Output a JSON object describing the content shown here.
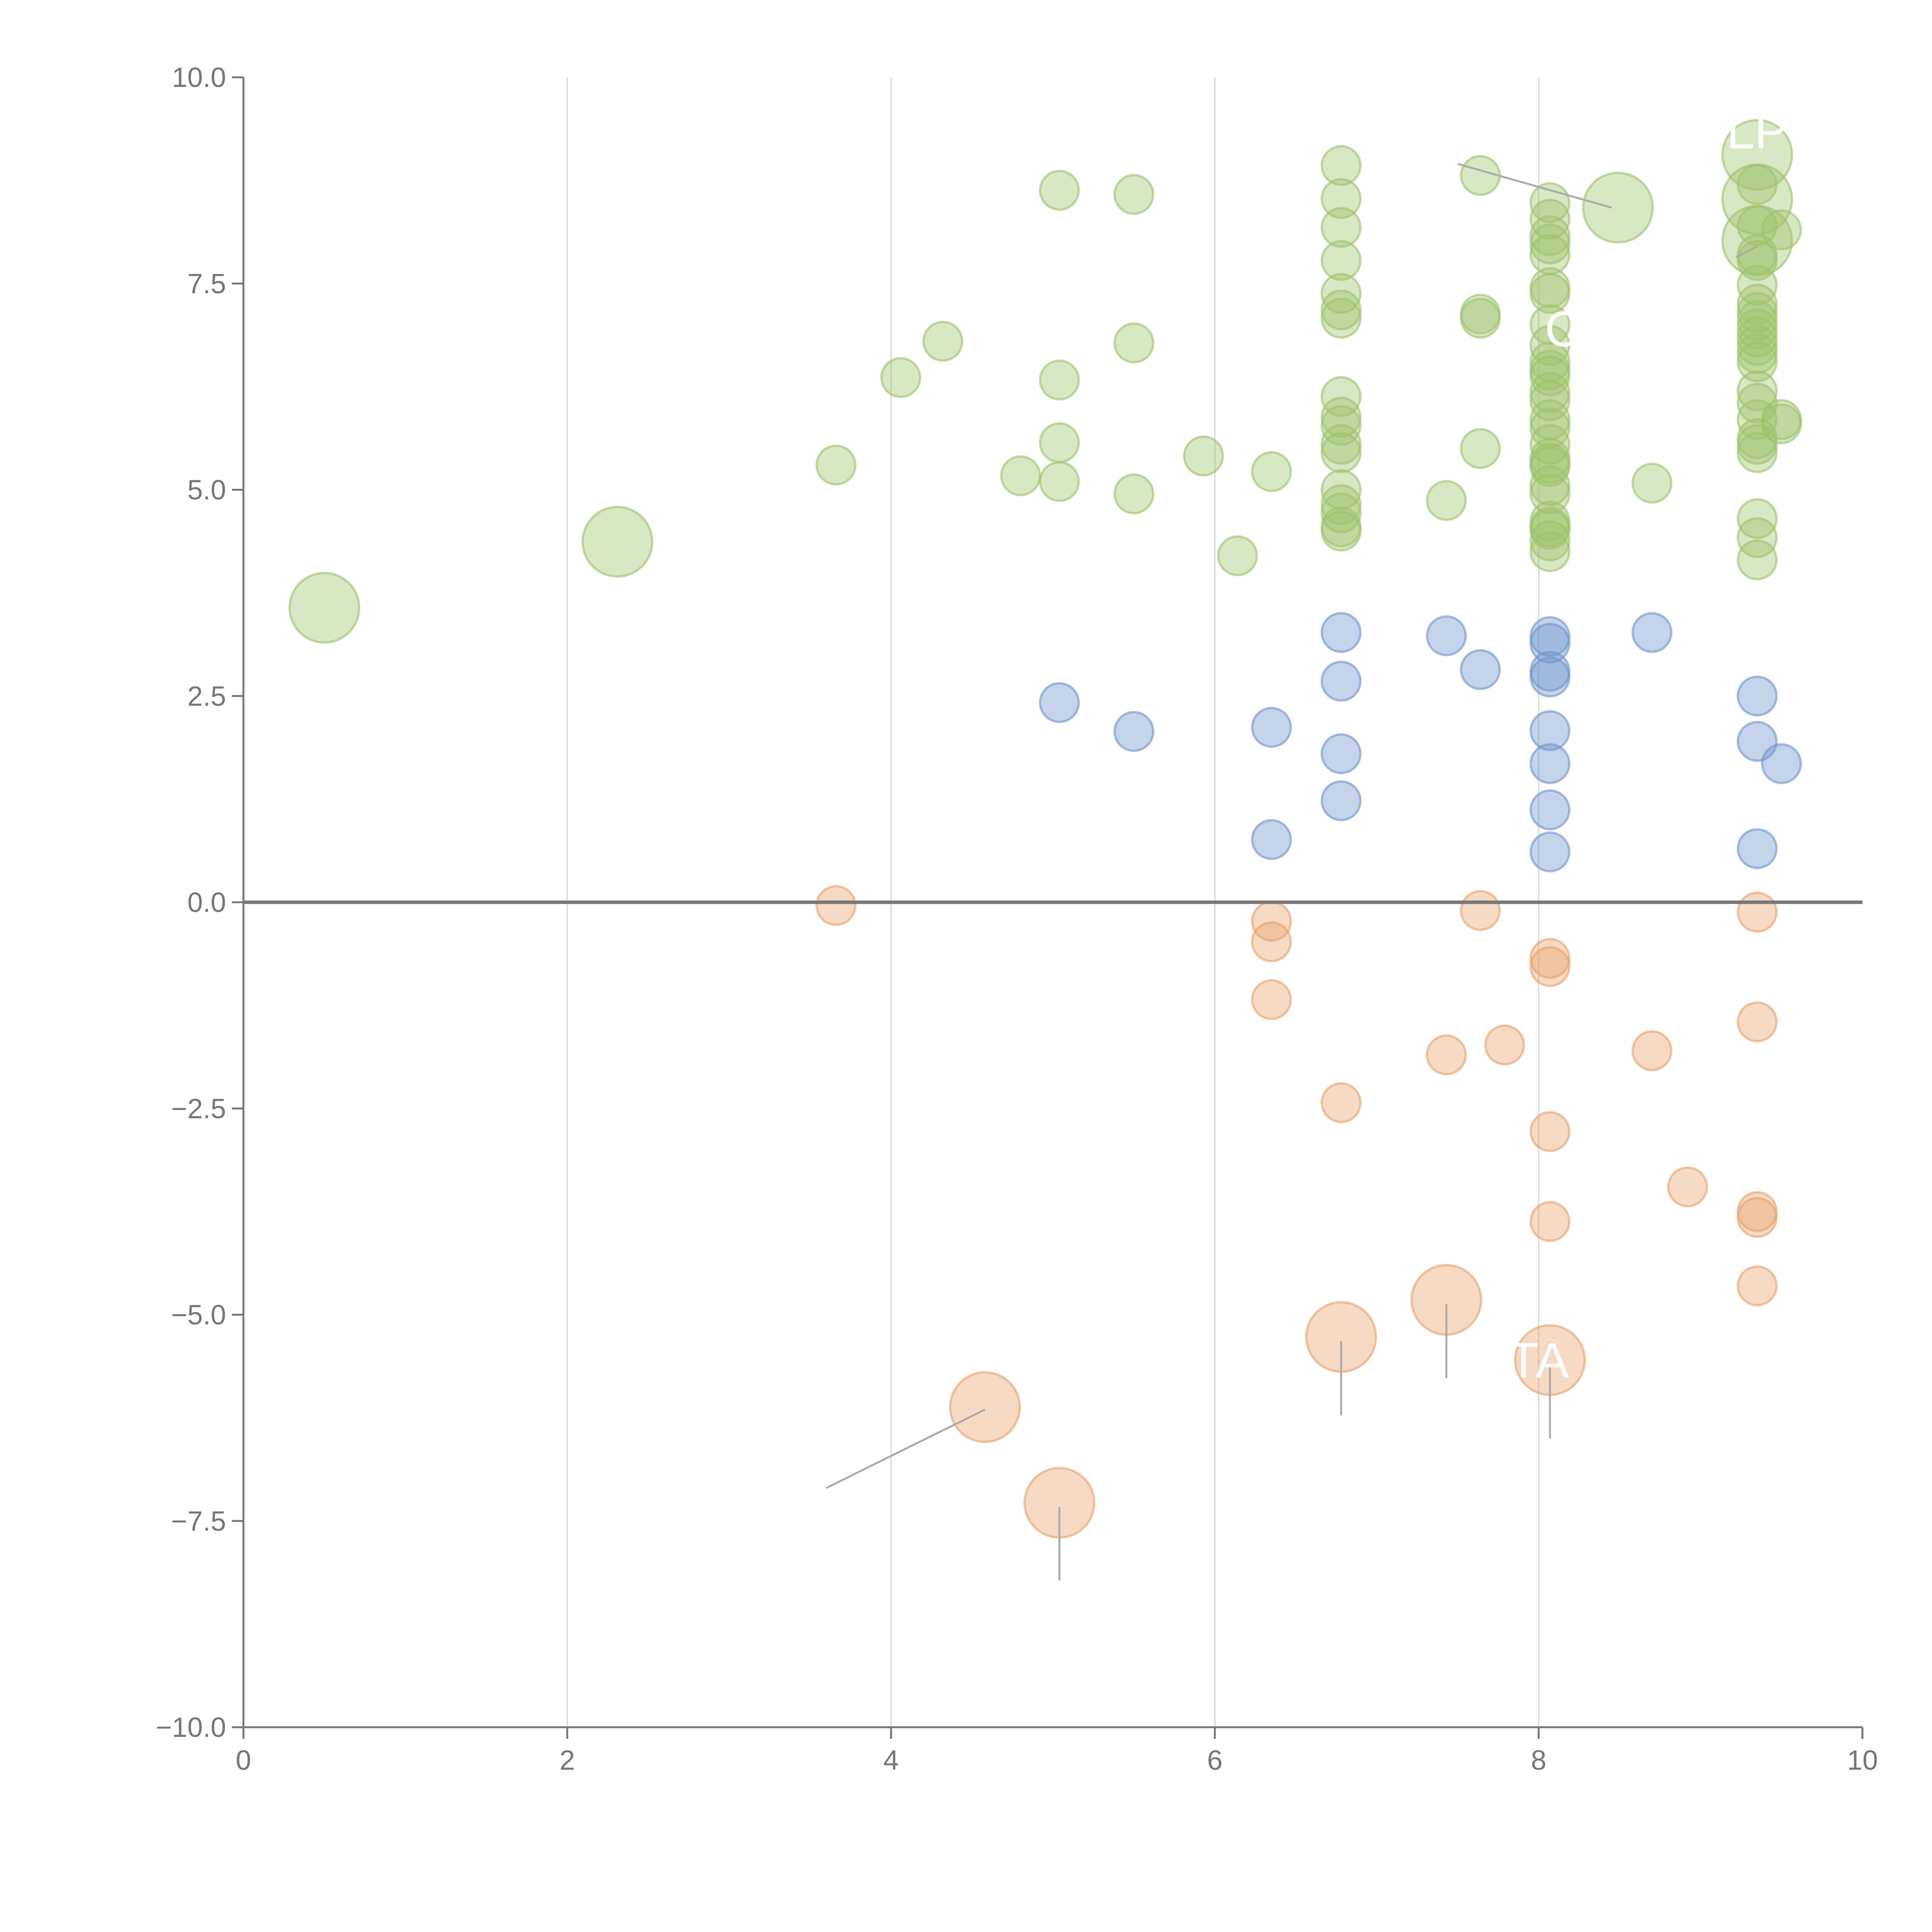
{
  "chart_data": {
    "type": "scatter",
    "title": "",
    "xlabel": "",
    "ylabel": "",
    "xlim": [
      0,
      10
    ],
    "ylim": [
      -10,
      10
    ],
    "grid": "vertical",
    "x_ticks": [
      "0",
      "2",
      "4",
      "6",
      "8",
      "10"
    ],
    "y_ticks": [
      "10.0",
      "7.5",
      "5.0",
      "2.5",
      "0.0",
      "−2.5",
      "−5.0",
      "−7.5",
      "−10.0"
    ],
    "colors": {
      "green": "#9ec26b",
      "blue": "#6f93cc",
      "orange": "#e8a26c",
      "leader": "#aaaaaa",
      "label": "#ffffff",
      "axis": "#777777",
      "grid": "#dddddd"
    },
    "series": [
      {
        "name": "green",
        "color": "#9ec26b",
        "points": [
          [
            0.5,
            3.57,
            2
          ],
          [
            2.31,
            4.37,
            2
          ],
          [
            8.49,
            8.42,
            2
          ],
          [
            9.35,
            9.06,
            2
          ],
          [
            9.35,
            8.52,
            2
          ],
          [
            9.35,
            8.02,
            2
          ],
          [
            3.66,
            5.3,
            1
          ],
          [
            4.06,
            6.36,
            1
          ],
          [
            4.32,
            6.8,
            1
          ],
          [
            4.8,
            5.17,
            1
          ],
          [
            5.04,
            8.63,
            1
          ],
          [
            5.04,
            6.33,
            1
          ],
          [
            5.04,
            5.57,
            1
          ],
          [
            5.04,
            5.1,
            1
          ],
          [
            5.5,
            8.58,
            1
          ],
          [
            5.5,
            6.78,
            1
          ],
          [
            5.5,
            4.95,
            1
          ],
          [
            5.93,
            5.41,
            1
          ],
          [
            6.14,
            4.2,
            1
          ],
          [
            6.35,
            5.22,
            1
          ],
          [
            6.78,
            8.93,
            1
          ],
          [
            6.78,
            8.53,
            1
          ],
          [
            6.78,
            8.18,
            1
          ],
          [
            6.78,
            7.78,
            1
          ],
          [
            6.78,
            7.38,
            1
          ],
          [
            6.78,
            7.18,
            1
          ],
          [
            6.78,
            7.08,
            1
          ],
          [
            6.78,
            6.13,
            1
          ],
          [
            6.78,
            5.88,
            1
          ],
          [
            6.78,
            5.78,
            1
          ],
          [
            6.78,
            5.55,
            1
          ],
          [
            6.78,
            5.45,
            1
          ],
          [
            6.78,
            5.0,
            1
          ],
          [
            6.78,
            4.82,
            1
          ],
          [
            6.78,
            4.72,
            1
          ],
          [
            6.78,
            4.55,
            1
          ],
          [
            6.78,
            4.5,
            1
          ],
          [
            7.43,
            4.87,
            1
          ],
          [
            7.64,
            8.81,
            1
          ],
          [
            7.64,
            7.13,
            1
          ],
          [
            7.64,
            7.08,
            1
          ],
          [
            7.64,
            5.5,
            1
          ],
          [
            8.07,
            8.48,
            1
          ],
          [
            8.07,
            8.28,
            1
          ],
          [
            8.07,
            8.08,
            1
          ],
          [
            8.07,
            7.98,
            1
          ],
          [
            8.07,
            7.85,
            1
          ],
          [
            8.07,
            7.45,
            1
          ],
          [
            8.07,
            7.38,
            1
          ],
          [
            8.07,
            7.0,
            1
          ],
          [
            8.07,
            6.75,
            1
          ],
          [
            8.07,
            6.55,
            1
          ],
          [
            8.07,
            6.45,
            1
          ],
          [
            8.07,
            6.38,
            1
          ],
          [
            8.07,
            6.18,
            1
          ],
          [
            8.07,
            6.08,
            1
          ],
          [
            8.07,
            5.85,
            1
          ],
          [
            8.07,
            5.75,
            1
          ],
          [
            8.07,
            5.55,
            1
          ],
          [
            8.07,
            5.38,
            1
          ],
          [
            8.07,
            5.32,
            1
          ],
          [
            8.07,
            5.28,
            1
          ],
          [
            8.07,
            5.05,
            1
          ],
          [
            8.07,
            4.95,
            1
          ],
          [
            8.07,
            4.62,
            1
          ],
          [
            8.07,
            4.55,
            1
          ],
          [
            8.07,
            4.52,
            1
          ],
          [
            8.07,
            4.38,
            1
          ],
          [
            8.07,
            4.25,
            1
          ],
          [
            8.7,
            5.08,
            1
          ],
          [
            9.35,
            8.7,
            1
          ],
          [
            9.35,
            8.2,
            1
          ],
          [
            9.35,
            7.85,
            1
          ],
          [
            9.35,
            7.78,
            1
          ],
          [
            9.35,
            7.48,
            1
          ],
          [
            9.35,
            7.25,
            1
          ],
          [
            9.35,
            7.15,
            1
          ],
          [
            9.35,
            7.05,
            1
          ],
          [
            9.35,
            6.95,
            1
          ],
          [
            9.35,
            6.85,
            1
          ],
          [
            9.35,
            6.75,
            1
          ],
          [
            9.35,
            6.65,
            1
          ],
          [
            9.35,
            6.55,
            1
          ],
          [
            9.35,
            6.2,
            1
          ],
          [
            9.35,
            6.05,
            1
          ],
          [
            9.35,
            5.85,
            1
          ],
          [
            9.35,
            5.62,
            1
          ],
          [
            9.35,
            5.55,
            1
          ],
          [
            9.35,
            5.45,
            1
          ],
          [
            9.35,
            4.65,
            1
          ],
          [
            9.35,
            4.42,
            1
          ],
          [
            9.35,
            4.15,
            1
          ],
          [
            9.5,
            8.15,
            1
          ],
          [
            9.5,
            5.85,
            1
          ],
          [
            9.5,
            5.8,
            1
          ]
        ]
      },
      {
        "name": "blue",
        "color": "#6f93cc",
        "points": [
          [
            5.04,
            2.42,
            1
          ],
          [
            5.5,
            2.07,
            1
          ],
          [
            6.35,
            2.12,
            1
          ],
          [
            6.35,
            0.76,
            1
          ],
          [
            6.78,
            3.27,
            1
          ],
          [
            6.78,
            2.68,
            1
          ],
          [
            6.78,
            1.8,
            1
          ],
          [
            6.78,
            1.23,
            1
          ],
          [
            7.43,
            3.23,
            1
          ],
          [
            7.64,
            2.82,
            1
          ],
          [
            8.07,
            3.22,
            1
          ],
          [
            8.07,
            3.14,
            1
          ],
          [
            8.07,
            2.8,
            1
          ],
          [
            8.07,
            2.73,
            1
          ],
          [
            8.07,
            2.08,
            1
          ],
          [
            8.07,
            1.68,
            1
          ],
          [
            8.07,
            1.12,
            1
          ],
          [
            8.07,
            0.61,
            1
          ],
          [
            8.7,
            3.27,
            1
          ],
          [
            9.35,
            2.5,
            1
          ],
          [
            9.35,
            1.95,
            1
          ],
          [
            9.35,
            0.65,
            1
          ],
          [
            9.5,
            1.68,
            1
          ]
        ]
      },
      {
        "name": "orange",
        "color": "#e8a26c",
        "points": [
          [
            3.66,
            -0.04,
            1
          ],
          [
            6.35,
            -0.23,
            1
          ],
          [
            6.35,
            -0.48,
            1
          ],
          [
            6.35,
            -1.18,
            1
          ],
          [
            6.78,
            -2.43,
            1
          ],
          [
            7.43,
            -1.85,
            1
          ],
          [
            7.64,
            -0.1,
            1
          ],
          [
            7.79,
            -1.73,
            1
          ],
          [
            8.07,
            -0.68,
            1
          ],
          [
            8.07,
            -0.78,
            1
          ],
          [
            8.07,
            -2.78,
            1
          ],
          [
            8.07,
            -3.87,
            1
          ],
          [
            8.7,
            -1.8,
            1
          ],
          [
            8.92,
            -3.45,
            1
          ],
          [
            9.35,
            -0.12,
            1
          ],
          [
            9.35,
            -1.45,
            1
          ],
          [
            9.35,
            -3.75,
            1
          ],
          [
            9.35,
            -3.82,
            1
          ],
          [
            9.35,
            -4.65,
            1
          ],
          [
            4.58,
            -6.12,
            2
          ],
          [
            5.04,
            -7.28,
            2
          ],
          [
            6.78,
            -5.27,
            2
          ],
          [
            7.43,
            -4.82,
            2
          ],
          [
            8.07,
            -5.55,
            2
          ]
        ]
      }
    ],
    "leader_lines": [
      {
        "from": [
          4.58,
          -6.15
        ],
        "to": [
          3.6,
          -7.1
        ]
      },
      {
        "from": [
          5.04,
          -7.33
        ],
        "to": [
          5.04,
          -8.22
        ]
      },
      {
        "from": [
          6.78,
          -5.32
        ],
        "to": [
          6.78,
          -6.22
        ]
      },
      {
        "from": [
          7.43,
          -4.87
        ],
        "to": [
          7.43,
          -5.77
        ]
      },
      {
        "from": [
          8.07,
          -5.6
        ],
        "to": [
          8.07,
          -6.5
        ]
      },
      {
        "from": [
          7.5,
          8.95
        ],
        "to": [
          8.45,
          8.42
        ]
      },
      {
        "from": [
          9.35,
          7.95
        ],
        "to": [
          9.22,
          7.82
        ]
      }
    ],
    "labels": [
      {
        "text": "LP",
        "x": 9.35,
        "y": 9.35
      },
      {
        "text": "C",
        "x": 8.15,
        "y": 6.95
      },
      {
        "text": "TA",
        "x": 8.0,
        "y": -5.55
      }
    ]
  }
}
